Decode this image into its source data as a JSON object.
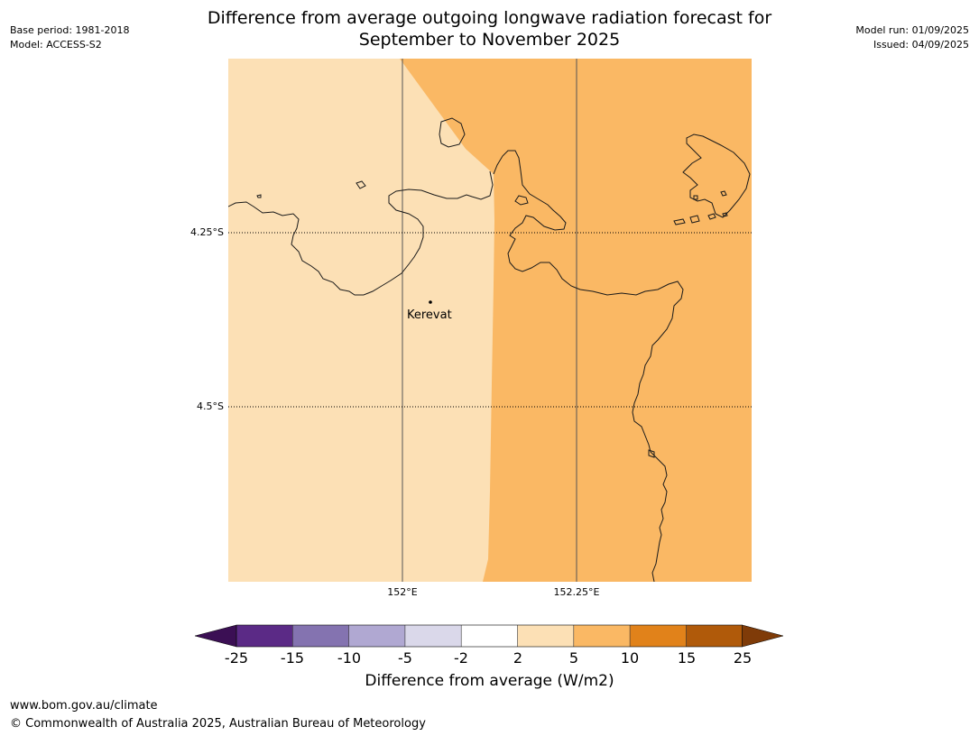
{
  "title": {
    "line1": "Difference from average outgoing longwave radiation forecast for",
    "line2": "September to November 2025"
  },
  "meta_left": {
    "base_period": "Base period: 1981-2018",
    "model": "Model: ACCESS-S2"
  },
  "meta_right": {
    "model_run": "Model run: 01/09/2025",
    "issued": "Issued: 04/09/2025"
  },
  "map": {
    "latitudes": [
      {
        "label": "4.25°S"
      },
      {
        "label": "4.5°S"
      }
    ],
    "longitudes": [
      {
        "label": "152°E"
      },
      {
        "label": "152.25°E"
      }
    ],
    "places": [
      {
        "name": "Kerevat"
      }
    ],
    "fill_colors": {
      "band_2_5": "#fce0b5",
      "band_5_10": "#fab864"
    }
  },
  "colorbar": {
    "label": "Difference from average (W/m2)",
    "ticks": [
      "-25",
      "-15",
      "-10",
      "-5",
      "-2",
      "2",
      "5",
      "10",
      "15",
      "25"
    ],
    "colors": [
      "#3b0f54",
      "#5b2a86",
      "#8473b0",
      "#b0a8d2",
      "#dad8ea",
      "#ffffff",
      "#fce0b5",
      "#fab864",
      "#e1821a",
      "#b05a0a",
      "#7f3b08"
    ]
  },
  "footer": {
    "url": "www.bom.gov.au/climate",
    "copyright": "© Commonwealth of Australia 2025, Australian Bureau of Meteorology"
  }
}
